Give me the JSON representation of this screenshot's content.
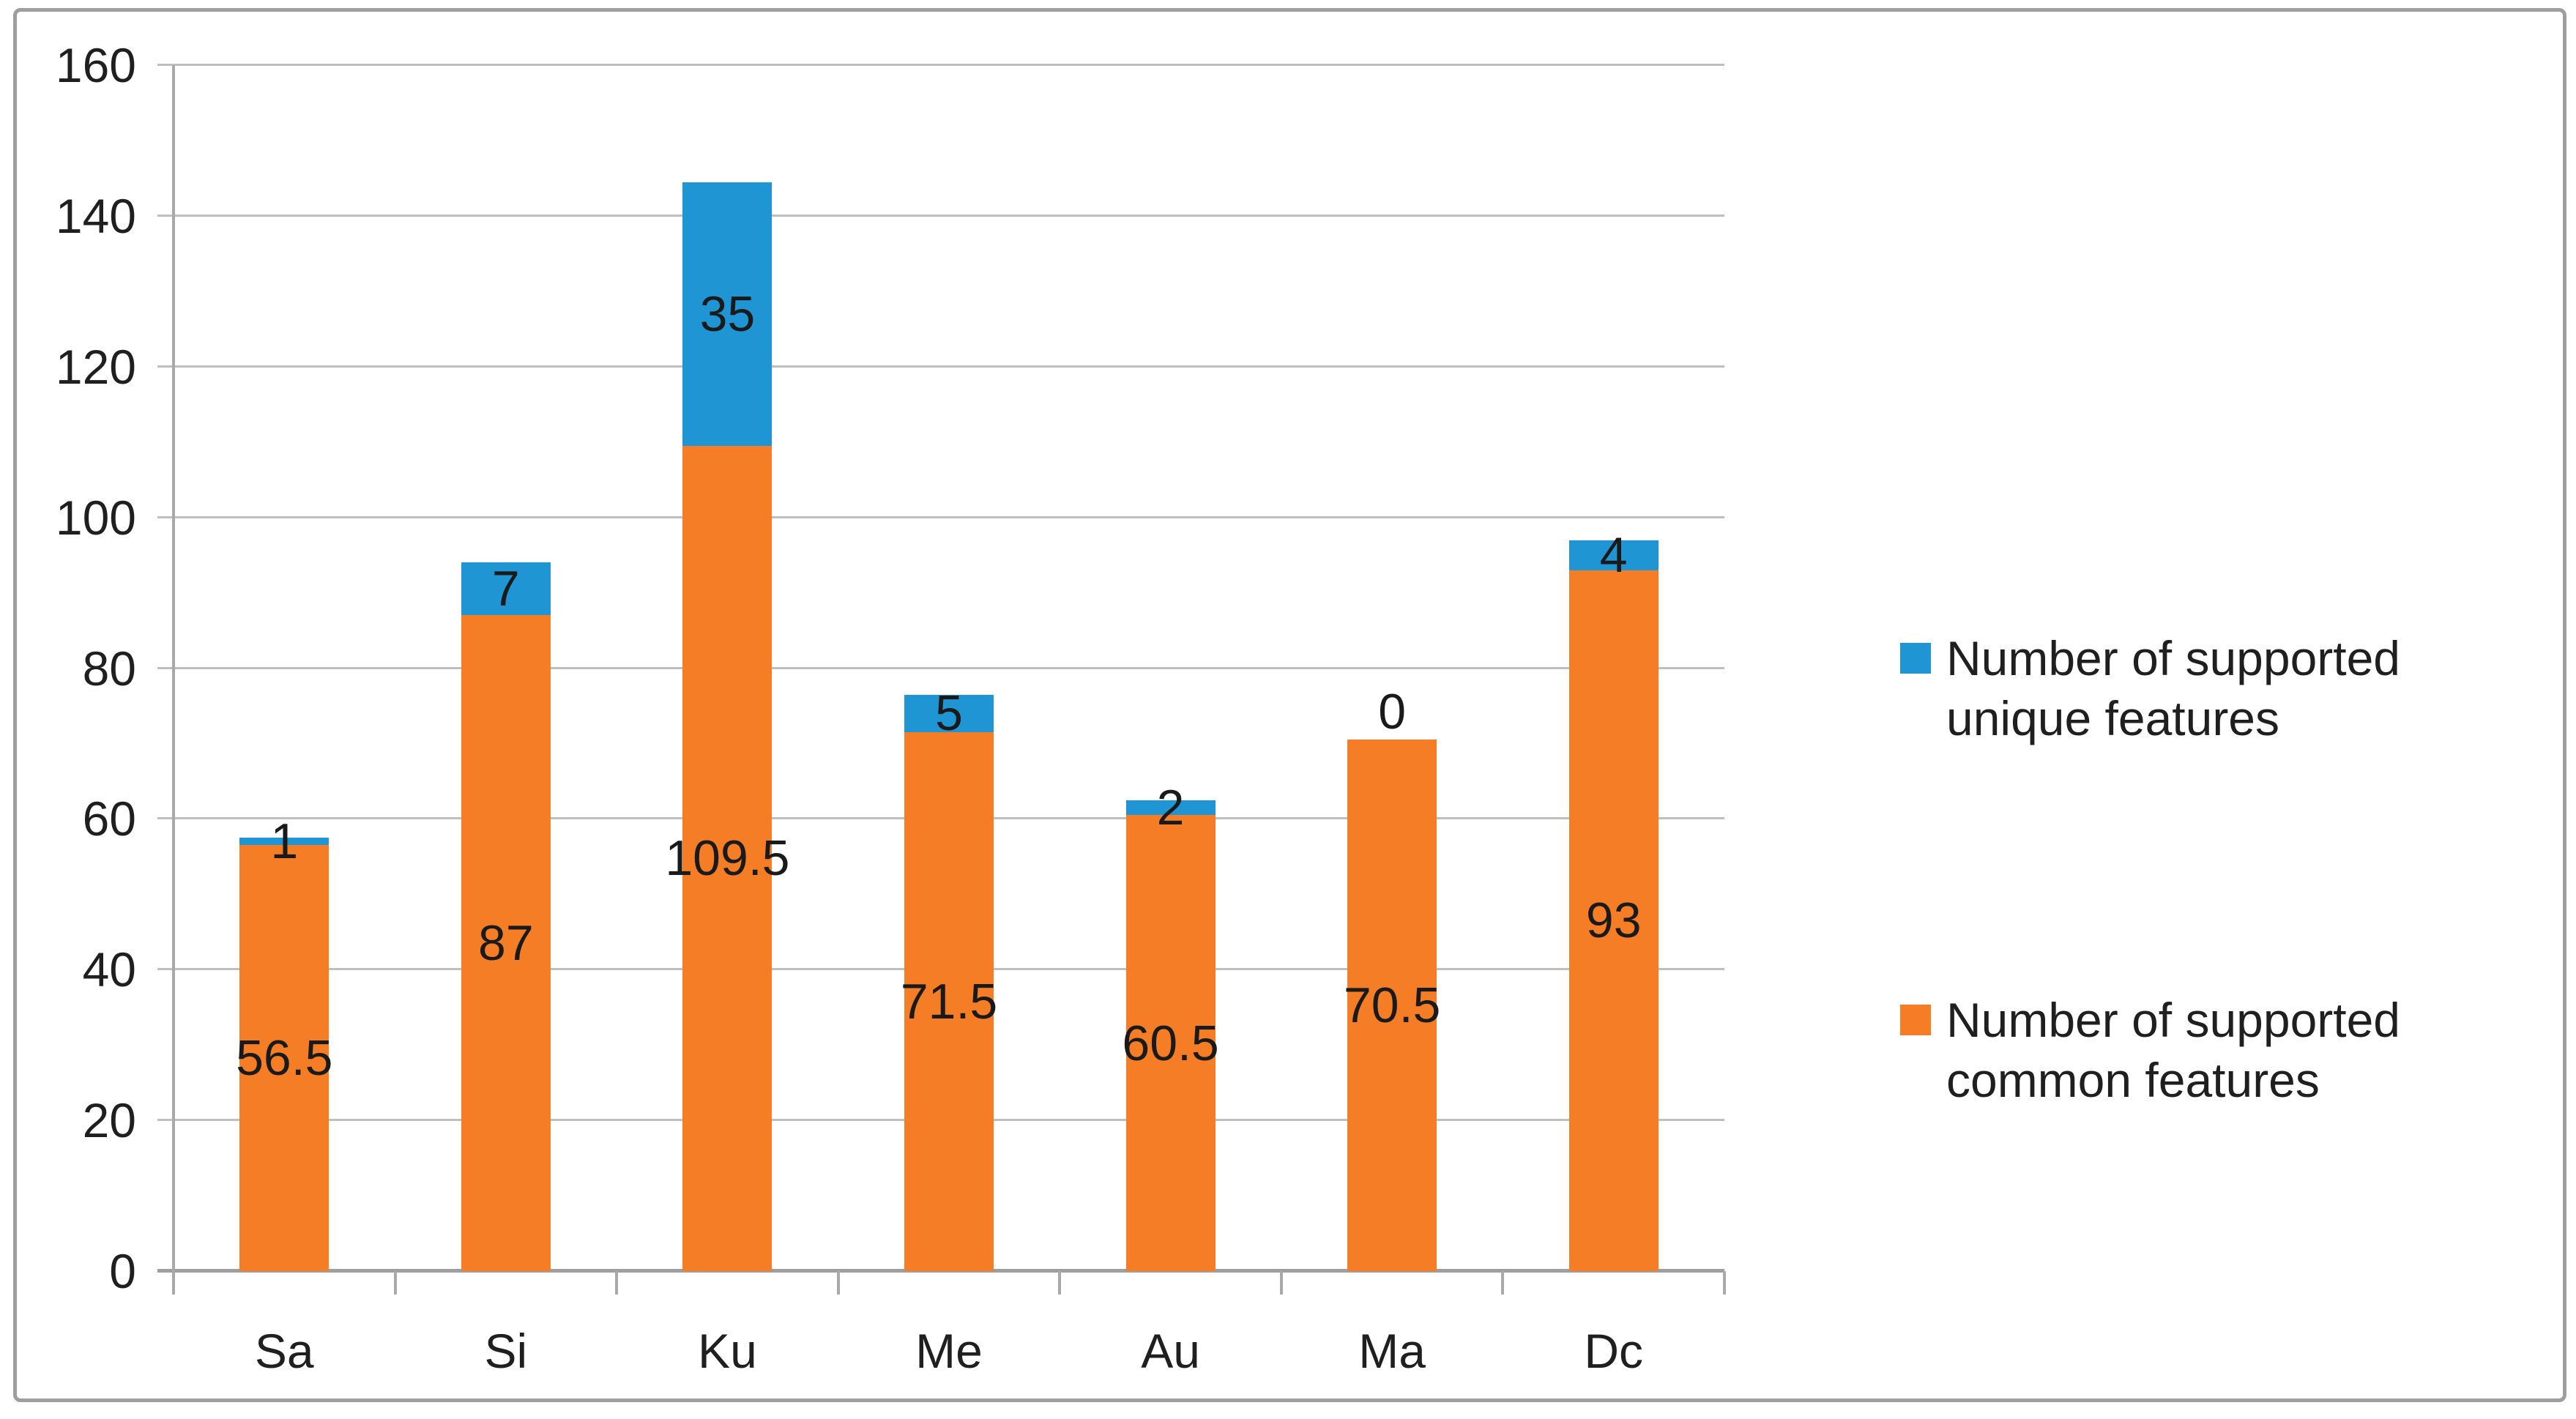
{
  "chart_data": {
    "type": "bar",
    "stacked": true,
    "title": "",
    "xlabel": "",
    "ylabel": "",
    "categories": [
      "Sa",
      "Si",
      "Ku",
      "Me",
      "Au",
      "Ma",
      "Dc"
    ],
    "series": [
      {
        "name": "Number of supported common features",
        "color": "#f57d26",
        "values": [
          56.5,
          87,
          109.5,
          71.5,
          60.5,
          70.5,
          93
        ],
        "labels": [
          "56.5",
          "87",
          "109.5",
          "71.5",
          "60.5",
          "70.5",
          "93"
        ]
      },
      {
        "name": "Number of supported unique features",
        "color": "#2095d3",
        "values": [
          1,
          7,
          35,
          5,
          2,
          0,
          4
        ],
        "labels": [
          "1",
          "7",
          "35",
          "5",
          "2",
          "0",
          "4"
        ]
      }
    ],
    "ylim": [
      0,
      160
    ],
    "yticks": [
      0,
      20,
      40,
      60,
      80,
      100,
      120,
      140,
      160
    ],
    "ytick_labels": [
      "0",
      "20",
      "40",
      "60",
      "80",
      "100",
      "120",
      "140",
      "160"
    ],
    "grid": true,
    "data_labels": true,
    "legend_position": "right"
  },
  "legend": {
    "items": [
      {
        "label": "Number of supported unique features",
        "color": "#2095d3"
      },
      {
        "label": "Number of supported common features",
        "color": "#f57d26"
      }
    ]
  },
  "colors": {
    "background": "#ffffff",
    "frame_border": "#9e9e9e",
    "gridline": "#bfbfbf",
    "axis": "#a9a9a9",
    "text": "#1f1f1f"
  }
}
